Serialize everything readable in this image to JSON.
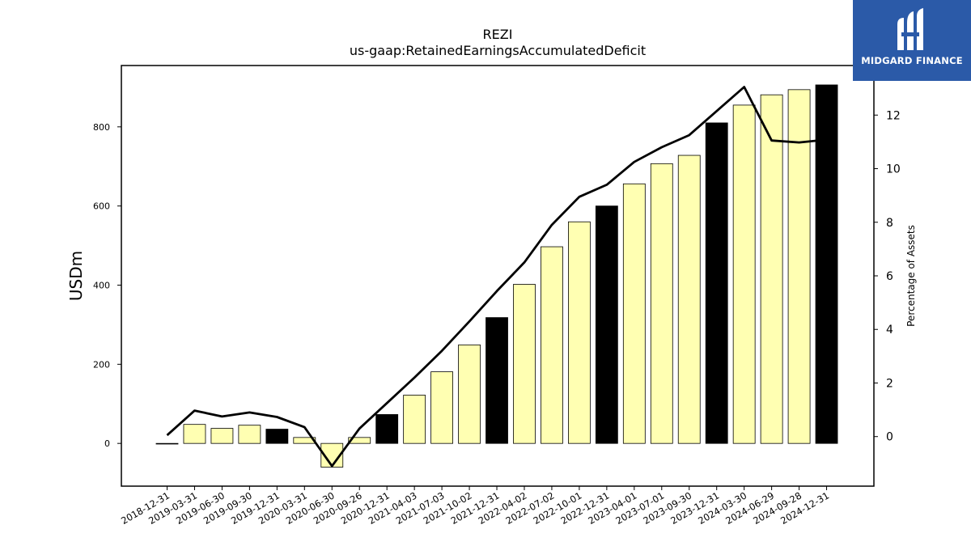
{
  "brand": {
    "name": "MIDGARD FINANCE",
    "bg_color": "#2b5aa8",
    "icon": "midgard-logo-icon"
  },
  "chart_data": {
    "type": "bar",
    "title": "REZI",
    "subtitle": "us-gaap:RetainedEarningsAccumulatedDeficit",
    "ylabel": "USDm",
    "y2label": "Percentage of Assets",
    "ylim": [
      -108,
      955
    ],
    "y2lim": [
      -1.85,
      13.85
    ],
    "yticks": [
      0,
      200,
      400,
      600,
      800
    ],
    "y2ticks": [
      0,
      2,
      4,
      6,
      8,
      10,
      12
    ],
    "grid": false,
    "categories": [
      "2018-12-31",
      "2019-03-31",
      "2019-06-30",
      "2019-09-30",
      "2019-12-31",
      "2020-03-31",
      "2020-06-30",
      "2020-09-26",
      "2020-12-31",
      "2021-04-03",
      "2021-07-03",
      "2021-10-02",
      "2021-12-31",
      "2022-04-02",
      "2022-07-02",
      "2022-10-01",
      "2022-12-31",
      "2023-04-01",
      "2023-07-01",
      "2023-09-30",
      "2023-12-31",
      "2024-03-30",
      "2024-06-29",
      "2024-09-28",
      "2024-12-31"
    ],
    "series": [
      {
        "type": "bar",
        "values": [
          0,
          48,
          38,
          46,
          36,
          15,
          -60,
          15,
          73,
          122,
          181,
          249,
          318,
          402,
          497,
          560,
          600,
          656,
          707,
          728,
          810,
          855,
          881,
          894,
          906
        ],
        "colors": [
          "#ffffb2",
          "#ffffb2",
          "#ffffb2",
          "#ffffb2",
          "#000000",
          "#ffffb2",
          "#ffffb2",
          "#ffffb2",
          "#000000",
          "#ffffb2",
          "#ffffb2",
          "#ffffb2",
          "#000000",
          "#ffffb2",
          "#ffffb2",
          "#ffffb2",
          "#000000",
          "#ffffb2",
          "#ffffb2",
          "#ffffb2",
          "#000000",
          "#ffffb2",
          "#ffffb2",
          "#ffffb2",
          "#000000"
        ]
      },
      {
        "type": "line",
        "axis": "right",
        "color": "#000000",
        "values": [
          0.05,
          0.97,
          0.75,
          0.9,
          0.73,
          0.35,
          -1.1,
          0.3,
          1.25,
          2.2,
          3.2,
          4.3,
          5.43,
          6.5,
          7.9,
          8.95,
          9.4,
          10.25,
          10.8,
          11.25,
          12.15,
          13.05,
          11.05,
          10.98,
          11.08
        ]
      }
    ]
  }
}
